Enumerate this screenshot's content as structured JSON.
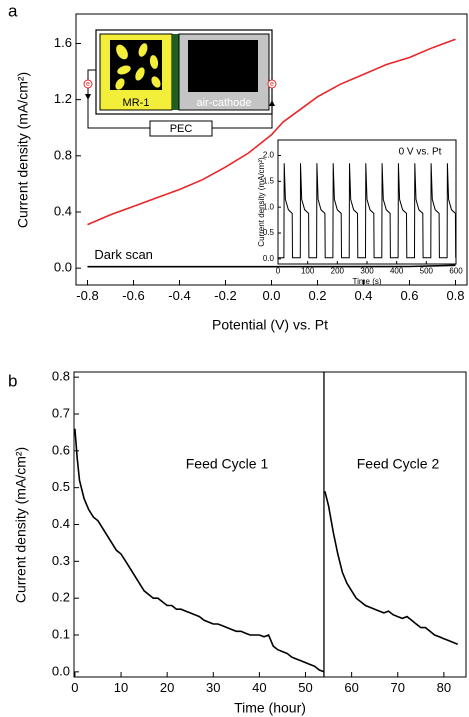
{
  "chart_data": [
    {
      "type": "line",
      "panel": "a",
      "xlabel": "Potential (V) vs. Pt",
      "ylabel": "Current density (mA/cm²)",
      "xlim": [
        -0.85,
        0.85
      ],
      "ylim": [
        -0.12,
        1.81
      ],
      "xticks": [
        -0.8,
        -0.6,
        -0.4,
        -0.2,
        {
          "value": 0,
          "label": "0.0"
        },
        0.2,
        0.4,
        0.6,
        0.8
      ],
      "yticks": [
        {
          "value": 0,
          "label": "0.0"
        },
        0.4,
        0.8,
        1.2,
        1.6
      ],
      "series": [
        {
          "color": "#e8262a",
          "x": [
            -0.8,
            -0.7,
            -0.6,
            -0.5,
            -0.4,
            -0.3,
            -0.2,
            -0.1,
            0.0,
            0.05,
            0.1,
            0.2,
            0.3,
            0.4,
            0.5,
            0.6,
            0.7,
            0.8
          ],
          "values": [
            0.31,
            0.38,
            0.44,
            0.5,
            0.56,
            0.63,
            0.72,
            0.82,
            0.95,
            1.04,
            1.1,
            1.22,
            1.31,
            1.38,
            1.45,
            1.5,
            1.57,
            1.63
          ]
        },
        {
          "name": "Dark scan",
          "color": "#000000",
          "x": [
            -0.8,
            0.0,
            0.6,
            0.8
          ],
          "values": [
            0.01,
            0.01,
            0.012,
            0.02
          ]
        }
      ],
      "diagram": {
        "left": "MR-1",
        "right": "air-cathode",
        "load": "PEC",
        "electron": "e"
      }
    },
    {
      "type": "line",
      "title": "0 V vs. Pt",
      "xlabel": "Time (s)",
      "ylabel": "Current density (mA/cm²)",
      "xlim": [
        0,
        600
      ],
      "ylim": [
        -0.1,
        2.3
      ],
      "xticks": [
        0,
        100,
        200,
        300,
        400,
        500,
        600
      ],
      "yticks": [
        {
          "value": 0,
          "label": "0.0"
        },
        0.5,
        {
          "value": 1,
          "label": "1.0"
        },
        1.5,
        {
          "value": 2,
          "label": "2.0"
        }
      ],
      "series": [
        {
          "color": "#000000",
          "x": [
            0,
            20,
            21,
            25,
            35,
            48,
            49,
            75,
            76,
            80,
            90,
            103,
            104,
            130,
            131,
            135,
            145,
            158,
            159,
            185,
            186,
            190,
            200,
            213,
            214,
            240,
            241,
            245,
            255,
            268,
            269,
            295,
            296,
            300,
            310,
            323,
            324,
            350,
            351,
            355,
            365,
            378,
            379,
            405,
            406,
            410,
            420,
            433,
            434,
            460,
            461,
            465,
            475,
            488,
            489,
            515,
            516,
            520,
            530,
            543,
            544,
            570,
            571,
            575,
            585,
            598,
            599
          ],
          "values": [
            0.02,
            0.02,
            1.85,
            1.15,
            0.95,
            0.88,
            0.02,
            0.02,
            1.85,
            1.15,
            0.95,
            0.88,
            0.02,
            0.02,
            1.85,
            1.15,
            0.95,
            0.88,
            0.02,
            0.02,
            1.85,
            1.15,
            0.95,
            0.88,
            0.02,
            0.02,
            1.85,
            1.15,
            0.95,
            0.88,
            0.02,
            0.02,
            1.85,
            1.15,
            0.95,
            0.88,
            0.02,
            0.02,
            1.85,
            1.15,
            0.95,
            0.88,
            0.02,
            0.02,
            1.85,
            1.15,
            0.95,
            0.88,
            0.02,
            0.02,
            1.85,
            1.15,
            0.95,
            0.88,
            0.02,
            0.02,
            1.85,
            1.15,
            0.95,
            0.88,
            0.02,
            0.02,
            1.85,
            1.15,
            0.95,
            0.88,
            0.02
          ]
        }
      ]
    },
    {
      "type": "line",
      "panel": "b",
      "xlabel": "Time (hour)",
      "ylabel": "Current density  (mA/cm²)",
      "xlim": [
        -0.2,
        84.8
      ],
      "ylim": [
        -0.014,
        0.814
      ],
      "xticks": [
        0,
        10,
        20,
        30,
        40,
        50,
        60,
        70,
        80
      ],
      "yticks": [
        {
          "value": 0,
          "label": "0.0"
        },
        0.1,
        0.2,
        0.3,
        0.4,
        0.5,
        0.6,
        0.7,
        0.8
      ],
      "divider_x": 54,
      "annotations": [
        "Feed Cycle 1",
        "Feed Cycle 2"
      ],
      "series": [
        {
          "color": "#000000",
          "x": [
            0,
            0.5,
            1,
            2,
            3,
            4,
            5,
            6,
            7,
            8,
            9,
            10,
            11,
            12,
            13,
            14,
            15,
            16,
            17,
            18,
            19,
            20,
            21,
            22,
            23,
            24,
            25,
            26,
            27,
            28,
            29,
            30,
            31,
            32,
            33,
            34,
            35,
            36,
            37,
            38,
            39,
            40,
            41,
            42,
            43,
            44,
            45,
            46,
            47,
            48,
            49,
            50,
            51,
            52,
            53,
            54
          ],
          "values": [
            0.66,
            0.58,
            0.52,
            0.47,
            0.44,
            0.42,
            0.41,
            0.39,
            0.37,
            0.35,
            0.33,
            0.32,
            0.3,
            0.28,
            0.26,
            0.24,
            0.22,
            0.21,
            0.2,
            0.2,
            0.19,
            0.18,
            0.18,
            0.17,
            0.17,
            0.165,
            0.16,
            0.155,
            0.15,
            0.14,
            0.135,
            0.13,
            0.13,
            0.125,
            0.12,
            0.115,
            0.11,
            0.11,
            0.105,
            0.1,
            0.1,
            0.1,
            0.095,
            0.1,
            0.07,
            0.06,
            0.055,
            0.05,
            0.04,
            0.035,
            0.03,
            0.025,
            0.02,
            0.015,
            0.005,
            0.0
          ]
        },
        {
          "color": "#000000",
          "x": [
            54.2,
            55,
            56,
            57,
            58,
            59,
            60,
            61,
            62,
            63,
            64,
            65,
            66,
            67,
            68,
            69,
            70,
            71,
            72,
            73,
            74,
            75,
            76,
            77,
            78,
            79,
            80,
            81,
            82,
            83
          ],
          "values": [
            0.49,
            0.45,
            0.38,
            0.32,
            0.27,
            0.24,
            0.22,
            0.2,
            0.19,
            0.18,
            0.175,
            0.17,
            0.165,
            0.16,
            0.165,
            0.155,
            0.15,
            0.145,
            0.15,
            0.14,
            0.13,
            0.12,
            0.12,
            0.11,
            0.1,
            0.095,
            0.09,
            0.085,
            0.08,
            0.075
          ]
        }
      ]
    }
  ]
}
